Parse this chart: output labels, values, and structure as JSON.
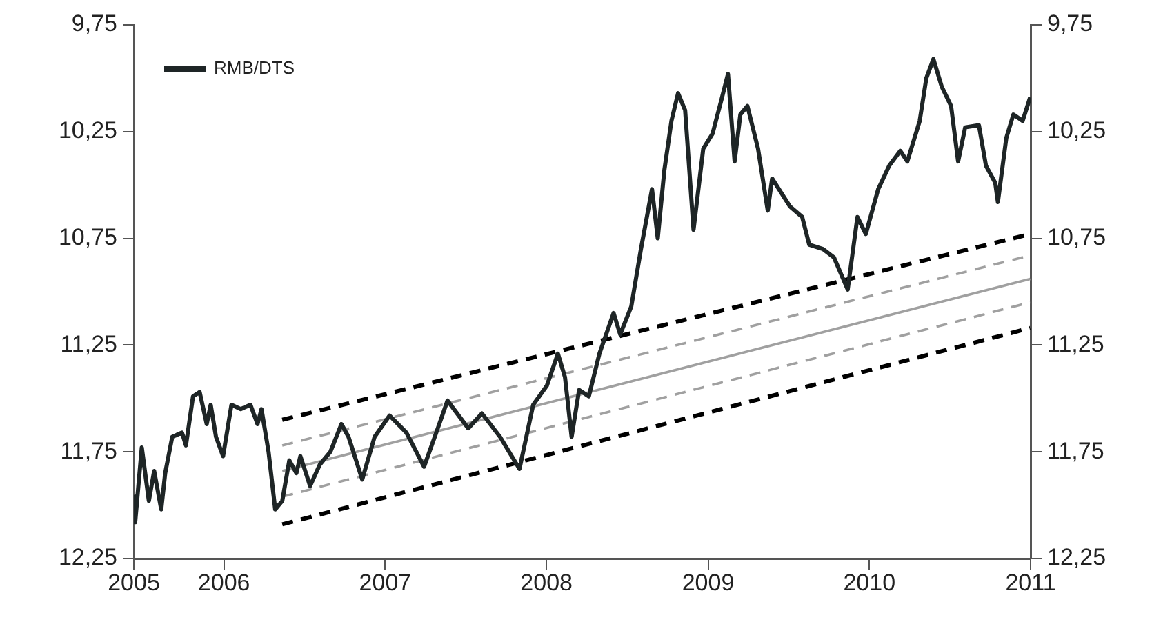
{
  "chart_data": {
    "type": "line",
    "legend": "top left",
    "grid": false,
    "ylim": [
      12.25,
      9.75
    ],
    "yticks": [
      {
        "value": 9.75,
        "label": "9,75"
      },
      {
        "value": 10.25,
        "label": "10,25"
      },
      {
        "value": 10.75,
        "label": "10,75"
      },
      {
        "value": 11.25,
        "label": "11,25"
      },
      {
        "value": 11.75,
        "label": "11,75"
      },
      {
        "value": 12.25,
        "label": "12,25"
      }
    ],
    "y2lim": [
      12.25,
      9.75
    ],
    "y2ticks": [
      {
        "value": 9.75,
        "label": "9,75"
      },
      {
        "value": 10.25,
        "label": "10,25"
      },
      {
        "value": 10.75,
        "label": "10,75"
      },
      {
        "value": 11.25,
        "label": "11,25"
      },
      {
        "value": 11.75,
        "label": "11,75"
      },
      {
        "value": 12.25,
        "label": "12,25"
      }
    ],
    "xlim": [
      "2005-06-11",
      "2011-01-01"
    ],
    "xticks": [
      {
        "value": "2005-06-11",
        "label": "2005"
      },
      "2006",
      "2007",
      "2008",
      "2009",
      "2010",
      "2011"
    ],
    "series": [
      {
        "name": "RMB/DTS",
        "color": "#1e2526",
        "line_style": "solid",
        "x": [
          "2005-06-11",
          "2005-06-14",
          "2005-06-29",
          "2005-07-15",
          "2005-07-27",
          "2005-08-12",
          "2005-08-21",
          "2005-09-06",
          "2005-09-28",
          "2005-10-07",
          "2005-10-23",
          "2005-11-07",
          "2005-11-23",
          "2005-12-02",
          "2005-12-14",
          "2005-12-30",
          "2006-01-18",
          "2006-02-08",
          "2006-03-02",
          "2006-03-18",
          "2006-03-27",
          "2006-04-12",
          "2006-04-27",
          "2006-05-13",
          "2006-05-29",
          "2006-06-14",
          "2006-06-23",
          "2006-07-15",
          "2006-08-06",
          "2006-08-30",
          "2006-09-24",
          "2006-10-10",
          "2006-11-10",
          "2006-12-08",
          "2007-01-11",
          "2007-02-18",
          "2007-03-30",
          "2007-04-30",
          "2007-05-22",
          "2007-07-08",
          "2007-08-08",
          "2007-09-18",
          "2007-11-01",
          "2007-12-02",
          "2008-01-02",
          "2008-01-27",
          "2008-02-12",
          "2008-02-27",
          "2008-03-15",
          "2008-04-06",
          "2008-04-30",
          "2008-06-01",
          "2008-06-16",
          "2008-07-11",
          "2008-08-02",
          "2008-08-27",
          "2008-09-09",
          "2008-09-24",
          "2008-10-10",
          "2008-10-25",
          "2008-11-10",
          "2008-11-29",
          "2008-12-21",
          "2009-01-11",
          "2009-01-30",
          "2009-02-15",
          "2009-03-02",
          "2009-03-15",
          "2009-03-31",
          "2009-04-24",
          "2009-05-16",
          "2009-05-26",
          "2009-07-05",
          "2009-08-02",
          "2009-08-18",
          "2009-09-18",
          "2009-10-13",
          "2009-11-13",
          "2009-12-05",
          "2009-12-24",
          "2010-01-21",
          "2010-02-15",
          "2010-03-12",
          "2010-03-28",
          "2010-04-25",
          "2010-05-10",
          "2010-05-26",
          "2010-06-14",
          "2010-07-05",
          "2010-07-21",
          "2010-08-06",
          "2010-09-06",
          "2010-09-22",
          "2010-10-13",
          "2010-10-19",
          "2010-11-07",
          "2010-11-23",
          "2010-12-14",
          "2010-12-31"
        ],
        "values": [
          11.96,
          12.08,
          11.73,
          11.98,
          11.84,
          12.02,
          11.85,
          11.68,
          11.66,
          11.72,
          11.49,
          11.47,
          11.62,
          11.53,
          11.68,
          11.77,
          11.53,
          11.55,
          11.53,
          11.62,
          11.55,
          11.75,
          12.02,
          11.98,
          11.79,
          11.85,
          11.77,
          11.91,
          11.81,
          11.75,
          11.62,
          11.68,
          11.88,
          11.68,
          11.58,
          11.66,
          11.82,
          11.64,
          11.51,
          11.64,
          11.57,
          11.68,
          11.83,
          11.53,
          11.44,
          11.29,
          11.4,
          11.68,
          11.46,
          11.49,
          11.29,
          11.1,
          11.2,
          11.07,
          10.8,
          10.52,
          10.75,
          10.43,
          10.2,
          10.07,
          10.15,
          10.71,
          10.33,
          10.26,
          10.11,
          9.98,
          10.39,
          10.17,
          10.13,
          10.33,
          10.62,
          10.47,
          10.6,
          10.65,
          10.78,
          10.8,
          10.84,
          10.99,
          10.65,
          10.73,
          10.52,
          10.41,
          10.34,
          10.39,
          10.2,
          10.0,
          9.91,
          10.04,
          10.13,
          10.39,
          10.23,
          10.22,
          10.41,
          10.49,
          10.58,
          10.28,
          10.17,
          10.2,
          10.09
        ]
      },
      {
        "color": "#000000",
        "line_style": "dashed",
        "x": [
          "2006-05-13",
          "2010-12-31"
        ],
        "values": [
          11.6,
          10.73
        ]
      },
      {
        "color": "#a0a0a0",
        "line_style": "dashed",
        "x": [
          "2006-05-13",
          "2010-12-31"
        ],
        "values": [
          11.72,
          10.83
        ]
      },
      {
        "color": "#a0a0a0",
        "line_style": "solid",
        "x": [
          "2006-05-13",
          "2010-12-31"
        ],
        "values": [
          11.84,
          10.94
        ]
      },
      {
        "color": "#a0a0a0",
        "line_style": "dashed",
        "x": [
          "2006-05-13",
          "2010-12-31"
        ],
        "values": [
          11.96,
          11.05
        ]
      },
      {
        "color": "#000000",
        "line_style": "dashed",
        "x": [
          "2006-05-13",
          "2010-12-31"
        ],
        "values": [
          12.09,
          11.17
        ]
      }
    ]
  }
}
